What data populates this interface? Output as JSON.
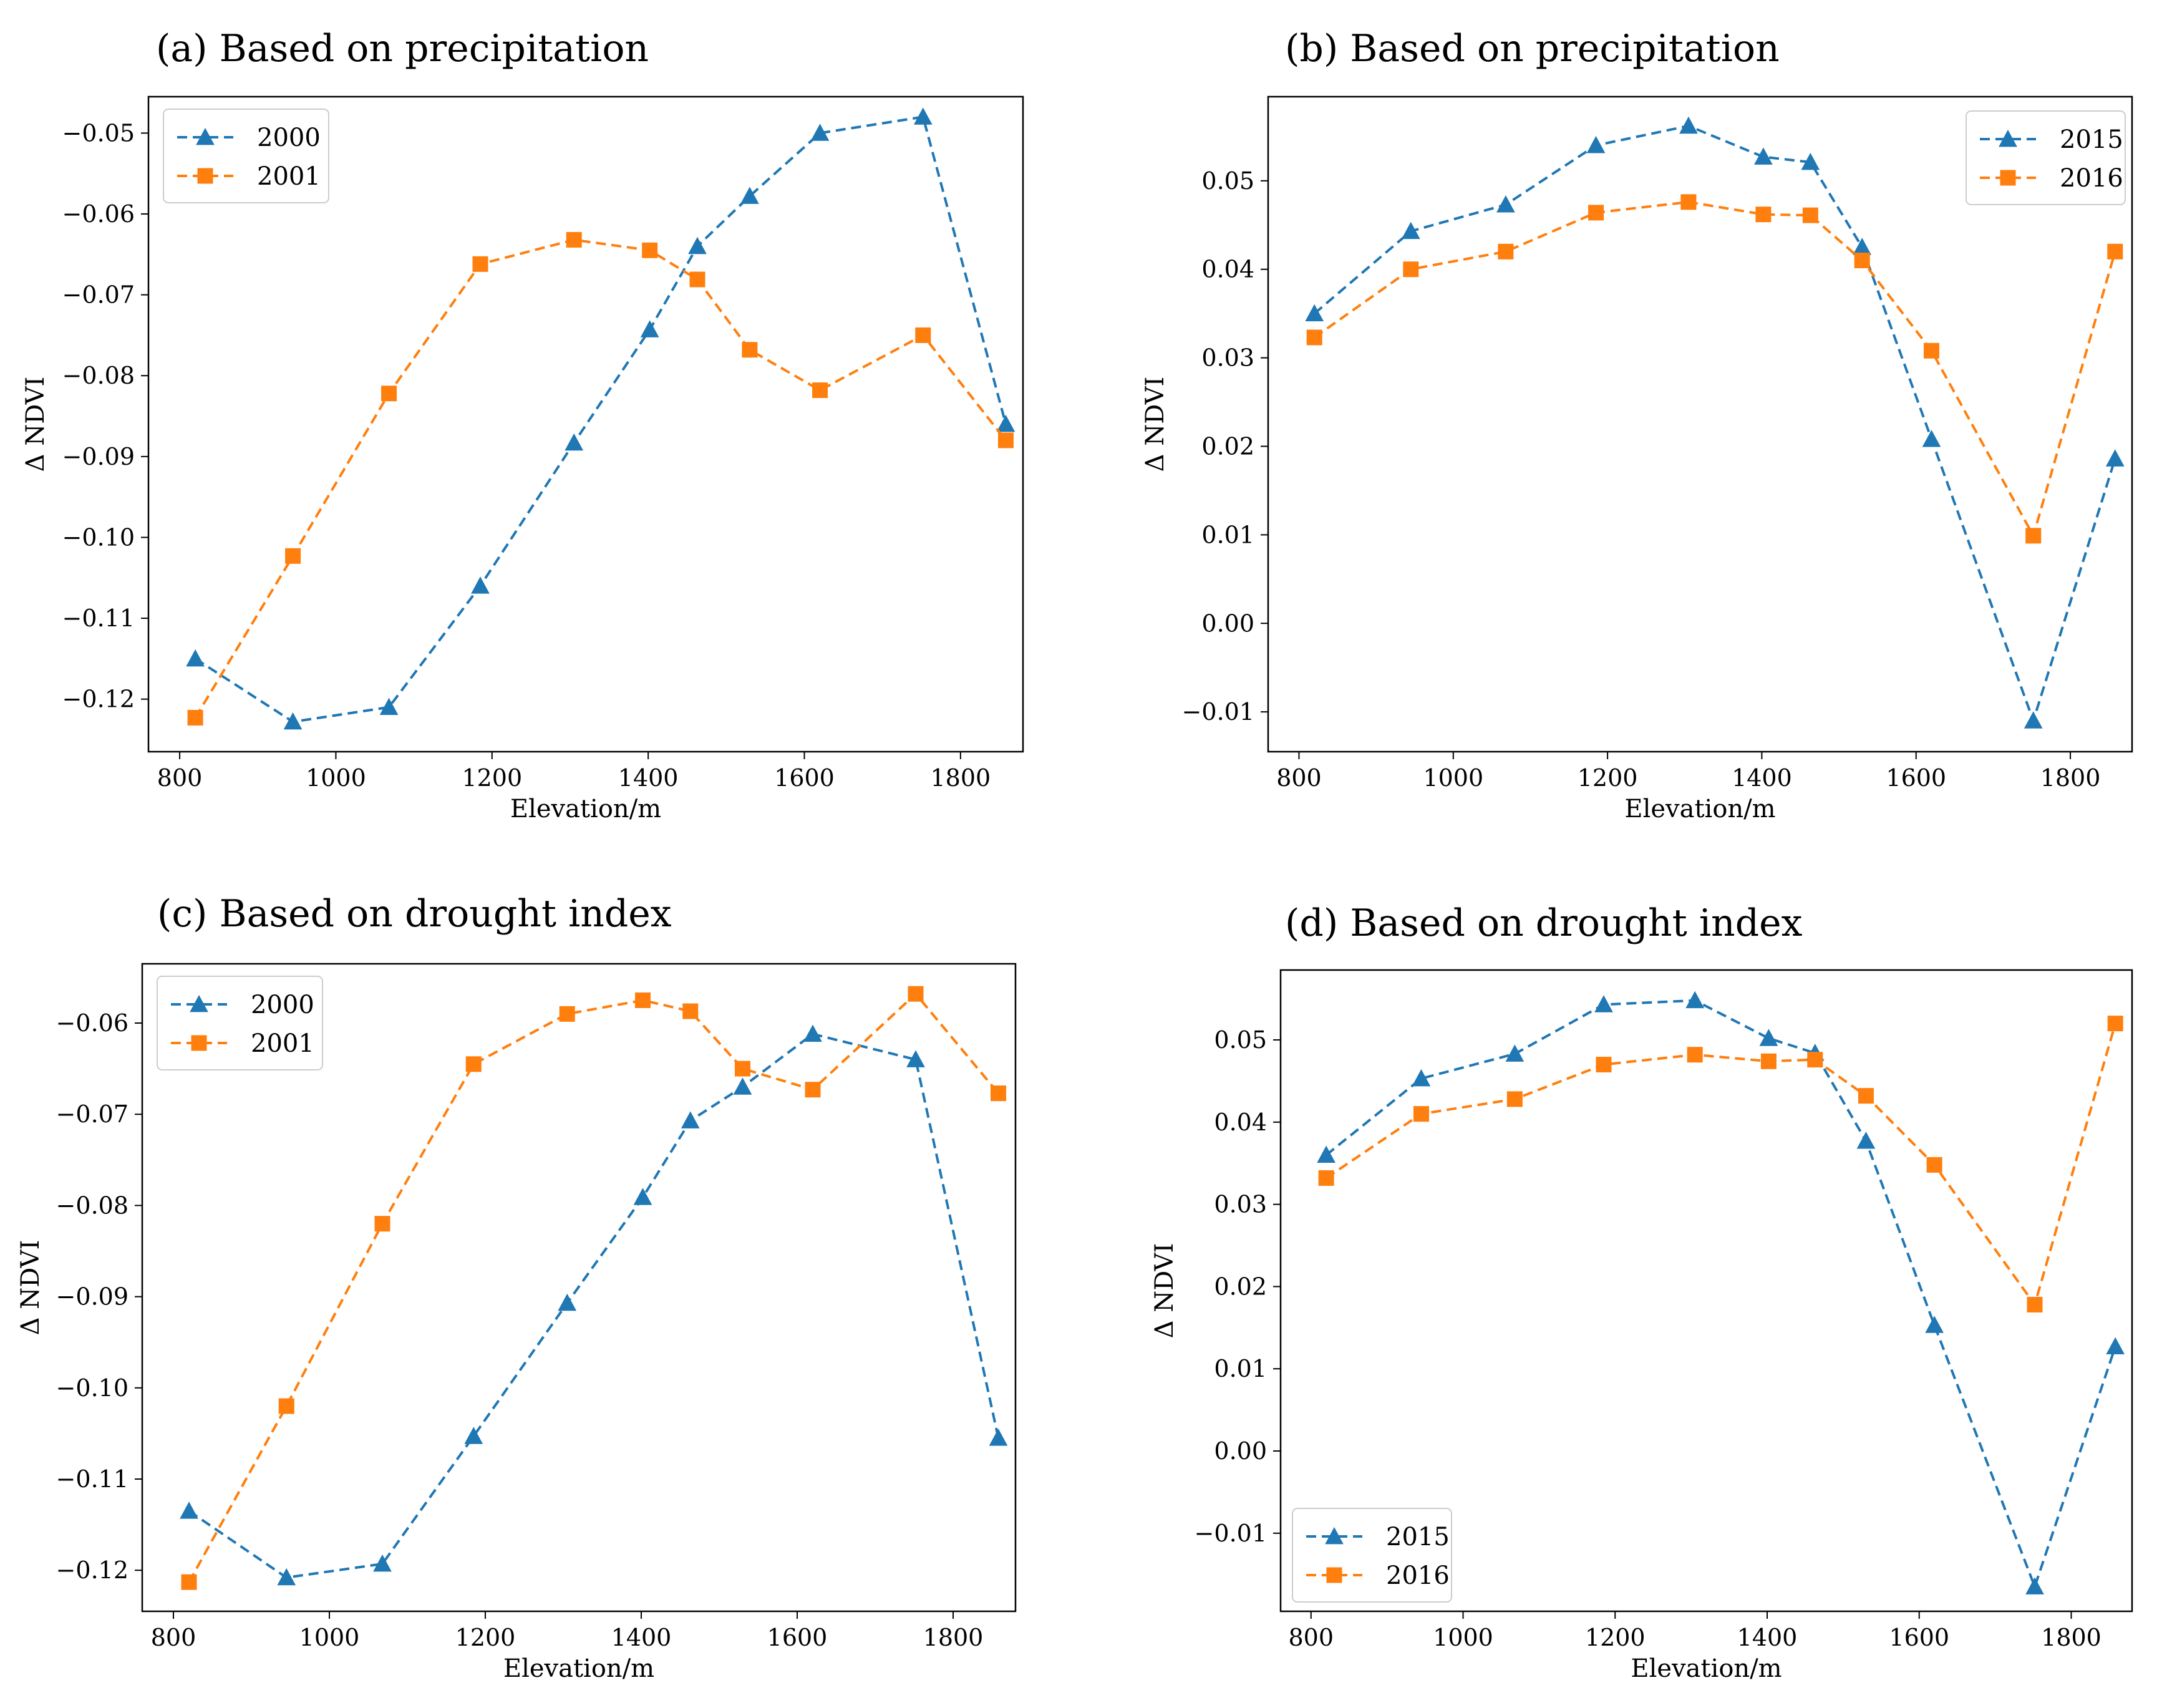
{
  "colors": {
    "blue": "#1f77b4",
    "orange": "#ff7f0e"
  },
  "chart_data": [
    {
      "type": "line",
      "title": "(a) Based on precipitation",
      "xlabel": "Elevation/m",
      "ylabel": "Δ NDVI",
      "xlim": [
        760,
        1880
      ],
      "ylim": [
        -0.1265,
        -0.0455
      ],
      "xticks": [
        800,
        1000,
        1200,
        1400,
        1600,
        1800
      ],
      "xtick_labels": [
        "800",
        "1000",
        "1200",
        "1400",
        "1600",
        "1800"
      ],
      "yticks": [
        -0.12,
        -0.11,
        -0.1,
        -0.09,
        -0.08,
        -0.07,
        -0.06,
        -0.05
      ],
      "ytick_labels": [
        "−0.12",
        "−0.11",
        "−0.10",
        "−0.09",
        "−0.08",
        "−0.07",
        "−0.06",
        "−0.05"
      ],
      "legend_position": "top-left",
      "x": [
        820,
        945,
        1068,
        1185,
        1305,
        1402,
        1463,
        1530,
        1620,
        1752,
        1858
      ],
      "series": [
        {
          "name": "2000",
          "marker": "triangle",
          "color": "blue",
          "values": [
            -0.115,
            -0.1228,
            -0.121,
            -0.106,
            -0.0883,
            -0.0743,
            -0.064,
            -0.0578,
            -0.05,
            -0.048,
            -0.086
          ]
        },
        {
          "name": "2001",
          "marker": "square",
          "color": "orange",
          "values": [
            -0.1223,
            -0.1023,
            -0.0822,
            -0.0662,
            -0.0632,
            -0.0645,
            -0.0681,
            -0.0768,
            -0.0818,
            -0.075,
            -0.088
          ]
        }
      ]
    },
    {
      "type": "line",
      "title": "(b) Based on precipitation",
      "xlabel": "Elevation/m",
      "ylabel": "Δ NDVI",
      "xlim": [
        760,
        1880
      ],
      "ylim": [
        -0.0145,
        0.0595
      ],
      "xticks": [
        800,
        1000,
        1200,
        1400,
        1600,
        1800
      ],
      "xtick_labels": [
        "800",
        "1000",
        "1200",
        "1400",
        "1600",
        "1800"
      ],
      "yticks": [
        -0.01,
        0.0,
        0.01,
        0.02,
        0.03,
        0.04,
        0.05
      ],
      "ytick_labels": [
        "−0.01",
        "0.00",
        "0.01",
        "0.02",
        "0.03",
        "0.04",
        "0.05"
      ],
      "legend_position": "top-right",
      "x": [
        820,
        945,
        1068,
        1185,
        1305,
        1402,
        1463,
        1530,
        1620,
        1752,
        1858
      ],
      "series": [
        {
          "name": "2015",
          "marker": "triangle",
          "color": "blue",
          "values": [
            0.035,
            0.0443,
            0.0473,
            0.054,
            0.0562,
            0.0527,
            0.0521,
            0.0425,
            0.0208,
            -0.011,
            0.0186
          ]
        },
        {
          "name": "2016",
          "marker": "square",
          "color": "orange",
          "values": [
            0.0323,
            0.04,
            0.042,
            0.0464,
            0.0476,
            0.0462,
            0.0461,
            0.041,
            0.0308,
            0.0099,
            0.042
          ]
        }
      ]
    },
    {
      "type": "line",
      "title": "(c) Based on drought index",
      "xlabel": "Elevation/m",
      "ylabel": "Δ NDVI",
      "xlim": [
        760,
        1880
      ],
      "ylim": [
        -0.1245,
        -0.0535
      ],
      "xticks": [
        800,
        1000,
        1200,
        1400,
        1600,
        1800
      ],
      "xtick_labels": [
        "800",
        "1000",
        "1200",
        "1400",
        "1600",
        "1800"
      ],
      "yticks": [
        -0.12,
        -0.11,
        -0.1,
        -0.09,
        -0.08,
        -0.07,
        -0.06
      ],
      "ytick_labels": [
        "−0.12",
        "−0.11",
        "−0.10",
        "−0.09",
        "−0.08",
        "−0.07",
        "−0.06"
      ],
      "legend_position": "top-left",
      "x": [
        820,
        945,
        1068,
        1185,
        1305,
        1402,
        1463,
        1530,
        1620,
        1752,
        1858
      ],
      "series": [
        {
          "name": "2000",
          "marker": "triangle",
          "color": "blue",
          "values": [
            -0.1135,
            -0.1208,
            -0.1193,
            -0.1053,
            -0.0907,
            -0.0791,
            -0.0707,
            -0.067,
            -0.0612,
            -0.064,
            -0.1055
          ]
        },
        {
          "name": "2001",
          "marker": "square",
          "color": "orange",
          "values": [
            -0.1213,
            -0.102,
            -0.082,
            -0.0645,
            -0.059,
            -0.0575,
            -0.0587,
            -0.065,
            -0.0673,
            -0.0568,
            -0.0677
          ]
        }
      ]
    },
    {
      "type": "line",
      "title": "(d) Based on drought index",
      "xlabel": "Elevation/m",
      "ylabel": "Δ NDVI",
      "xlim": [
        760,
        1880
      ],
      "ylim": [
        -0.0195,
        0.0585
      ],
      "xticks": [
        800,
        1000,
        1200,
        1400,
        1600,
        1800
      ],
      "xtick_labels": [
        "800",
        "1000",
        "1200",
        "1400",
        "1600",
        "1800"
      ],
      "yticks": [
        -0.01,
        0.0,
        0.01,
        0.02,
        0.03,
        0.04,
        0.05
      ],
      "ytick_labels": [
        "−0.01",
        "0.00",
        "0.01",
        "0.02",
        "0.03",
        "0.04",
        "0.05"
      ],
      "legend_position": "bottom-left",
      "x": [
        820,
        945,
        1068,
        1185,
        1305,
        1402,
        1463,
        1530,
        1620,
        1752,
        1858
      ],
      "series": [
        {
          "name": "2015",
          "marker": "triangle",
          "color": "blue",
          "values": [
            0.036,
            0.0453,
            0.0483,
            0.0543,
            0.0548,
            0.0502,
            0.0484,
            0.0377,
            0.0153,
            -0.0165,
            0.0127
          ]
        },
        {
          "name": "2016",
          "marker": "square",
          "color": "orange",
          "values": [
            0.0332,
            0.041,
            0.0428,
            0.047,
            0.0482,
            0.0474,
            0.0476,
            0.0432,
            0.0348,
            0.0178,
            0.052
          ]
        }
      ]
    }
  ]
}
